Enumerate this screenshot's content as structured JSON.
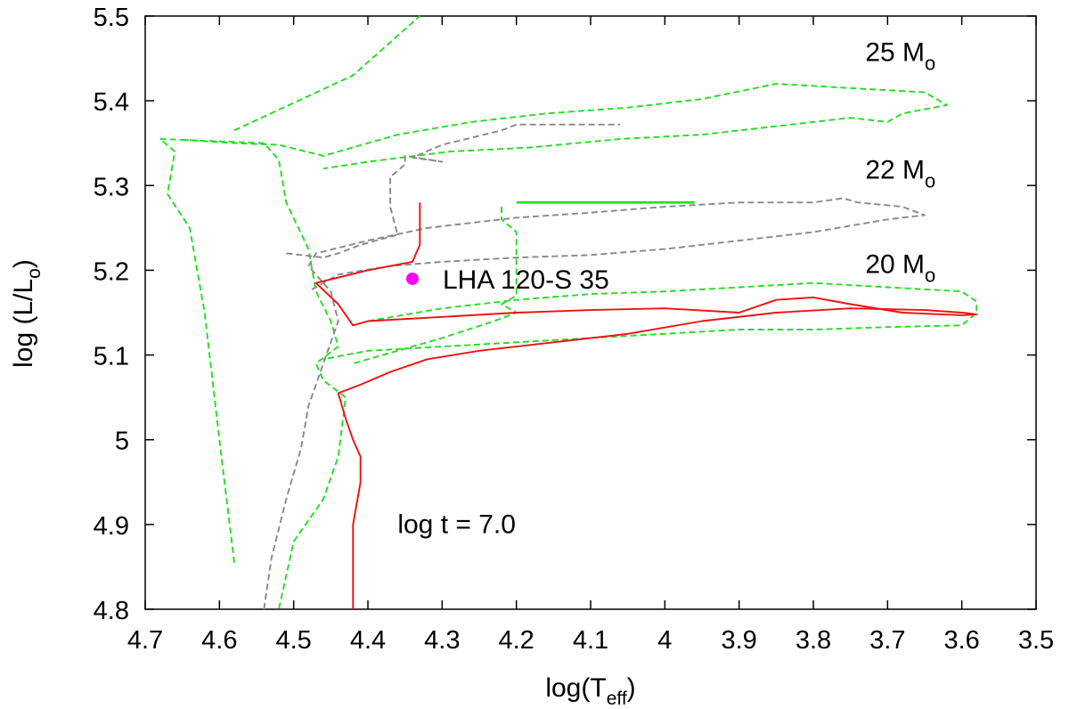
{
  "chart_data": {
    "type": "line",
    "xlabel": {
      "main": "log(T",
      "sub": "eff",
      "close": ")"
    },
    "ylabel": {
      "main": "log (L/L",
      "sub": "o",
      "close": ")"
    },
    "xlim": [
      4.7,
      3.5
    ],
    "ylim": [
      4.8,
      5.5
    ],
    "xticks": [
      4.7,
      4.6,
      4.5,
      4.4,
      4.3,
      4.2,
      4.1,
      4.0,
      3.9,
      3.8,
      3.7,
      3.6,
      3.5
    ],
    "xtick_labels": [
      "4.7",
      "4.6",
      "4.5",
      "4.4",
      "4.3",
      "4.2",
      "4.1",
      "4",
      "3.9",
      "3.8",
      "3.7",
      "3.6",
      "3.5"
    ],
    "yticks": [
      4.8,
      4.9,
      5.0,
      5.1,
      5.2,
      5.3,
      5.4,
      5.5
    ],
    "ytick_labels": [
      "4.8",
      "4.9",
      "5",
      "5.1",
      "5.2",
      "5.3",
      "5.4",
      "5.5"
    ],
    "grid": false,
    "colors": {
      "green": "#22dd22",
      "gray": "#888888",
      "red": "#ee1111",
      "magenta": "#ff00ff"
    },
    "series": [
      {
        "style": "dashed",
        "color": "green",
        "points": [
          [
            4.58,
            4.855
          ],
          [
            4.6,
            5.0
          ],
          [
            4.62,
            5.15
          ],
          [
            4.64,
            5.25
          ],
          [
            4.67,
            5.29
          ],
          [
            4.66,
            5.34
          ],
          [
            4.68,
            5.355
          ],
          [
            4.54,
            5.35
          ],
          [
            4.52,
            5.33
          ],
          [
            4.51,
            5.28
          ],
          [
            4.48,
            5.225
          ],
          [
            4.47,
            5.175
          ],
          [
            4.45,
            5.14
          ],
          [
            4.44,
            5.11
          ],
          [
            4.47,
            5.09
          ],
          [
            4.46,
            5.07
          ],
          [
            4.43,
            5.05
          ],
          [
            4.44,
            4.98
          ],
          [
            4.46,
            4.93
          ],
          [
            4.5,
            4.88
          ],
          [
            4.52,
            4.8
          ]
        ]
      },
      {
        "style": "dashed",
        "color": "green",
        "points": [
          [
            4.58,
            5.365
          ],
          [
            4.42,
            5.43
          ],
          [
            4.33,
            5.5
          ]
        ]
      },
      {
        "style": "dashed",
        "color": "green",
        "points": [
          [
            4.65,
            5.354
          ],
          [
            4.58,
            5.35
          ],
          [
            4.52,
            5.348
          ],
          [
            4.46,
            5.335
          ],
          [
            4.36,
            5.36
          ],
          [
            4.26,
            5.375
          ],
          [
            4.16,
            5.385
          ],
          [
            4.05,
            5.392
          ],
          [
            3.95,
            5.402
          ],
          [
            3.85,
            5.42
          ],
          [
            3.75,
            5.415
          ],
          [
            3.65,
            5.41
          ],
          [
            3.62,
            5.395
          ],
          [
            3.68,
            5.385
          ],
          [
            3.7,
            5.375
          ],
          [
            3.75,
            5.38
          ],
          [
            3.85,
            5.37
          ],
          [
            3.95,
            5.36
          ],
          [
            4.06,
            5.355
          ],
          [
            4.18,
            5.345
          ],
          [
            4.29,
            5.34
          ],
          [
            4.4,
            5.328
          ],
          [
            4.46,
            5.32
          ]
        ]
      },
      {
        "style": "dashed",
        "color": "green",
        "points": [
          [
            4.22,
            5.275
          ],
          [
            4.22,
            5.26
          ],
          [
            4.2,
            5.245
          ],
          [
            4.2,
            5.21
          ],
          [
            4.2,
            5.17
          ],
          [
            4.22,
            5.16
          ],
          [
            4.2,
            5.15
          ],
          [
            4.23,
            5.14
          ],
          [
            4.3,
            5.12
          ],
          [
            4.36,
            5.105
          ],
          [
            4.42,
            5.09
          ]
        ]
      },
      {
        "style": "dashed",
        "color": "green",
        "points": [
          [
            4.4,
            5.14
          ],
          [
            4.3,
            5.155
          ],
          [
            4.2,
            5.165
          ],
          [
            4.1,
            5.172
          ],
          [
            4.0,
            5.175
          ],
          [
            3.9,
            5.18
          ],
          [
            3.8,
            5.185
          ],
          [
            3.7,
            5.18
          ],
          [
            3.6,
            5.175
          ],
          [
            3.58,
            5.163
          ],
          [
            3.58,
            5.15
          ],
          [
            3.6,
            5.135
          ],
          [
            3.7,
            5.133
          ],
          [
            3.8,
            5.13
          ],
          [
            3.9,
            5.13
          ],
          [
            4.0,
            5.125
          ],
          [
            4.1,
            5.12
          ],
          [
            4.2,
            5.115
          ],
          [
            4.3,
            5.11
          ],
          [
            4.4,
            5.105
          ],
          [
            4.46,
            5.095
          ]
        ]
      },
      {
        "style": "solid",
        "color": "green",
        "points": [
          [
            4.2,
            5.28
          ],
          [
            3.96,
            5.28
          ]
        ]
      },
      {
        "style": "dashed",
        "color": "gray",
        "points": [
          [
            4.54,
            4.8
          ],
          [
            4.53,
            4.86
          ],
          [
            4.51,
            4.93
          ],
          [
            4.49,
            4.99
          ],
          [
            4.48,
            5.04
          ],
          [
            4.46,
            5.09
          ],
          [
            4.44,
            5.14
          ],
          [
            4.45,
            5.175
          ],
          [
            4.48,
            5.205
          ],
          [
            4.47,
            5.22
          ],
          [
            4.4,
            5.235
          ],
          [
            4.32,
            5.25
          ],
          [
            4.2,
            5.262
          ],
          [
            4.1,
            5.268
          ],
          [
            4.0,
            5.275
          ],
          [
            3.9,
            5.28
          ],
          [
            3.8,
            5.28
          ],
          [
            3.76,
            5.285
          ],
          [
            3.74,
            5.28
          ],
          [
            3.68,
            5.275
          ],
          [
            3.65,
            5.265
          ],
          [
            3.7,
            5.26
          ],
          [
            3.8,
            5.245
          ],
          [
            3.9,
            5.235
          ],
          [
            4.0,
            5.225
          ],
          [
            4.1,
            5.218
          ],
          [
            4.2,
            5.215
          ],
          [
            4.3,
            5.21
          ],
          [
            4.37,
            5.205
          ],
          [
            4.44,
            5.195
          ],
          [
            4.48,
            5.175
          ]
        ]
      },
      {
        "style": "dashed",
        "color": "gray",
        "points": [
          [
            4.51,
            5.22
          ],
          [
            4.46,
            5.215
          ],
          [
            4.44,
            5.22
          ],
          [
            4.41,
            5.23
          ],
          [
            4.36,
            5.242
          ],
          [
            4.37,
            5.275
          ],
          [
            4.37,
            5.31
          ],
          [
            4.35,
            5.325
          ],
          [
            4.35,
            5.335
          ],
          [
            4.3,
            5.328
          ],
          [
            4.34,
            5.333
          ],
          [
            4.3,
            5.348
          ],
          [
            4.22,
            5.365
          ],
          [
            4.2,
            5.372
          ],
          [
            4.06,
            5.372
          ]
        ]
      },
      {
        "style": "solid",
        "color": "red",
        "points": [
          [
            4.42,
            4.8
          ],
          [
            4.42,
            4.9
          ],
          [
            4.41,
            4.95
          ],
          [
            4.41,
            4.98
          ],
          [
            4.42,
            5.0
          ],
          [
            4.43,
            5.025
          ],
          [
            4.44,
            5.055
          ],
          [
            4.41,
            5.065
          ],
          [
            4.37,
            5.08
          ],
          [
            4.32,
            5.095
          ],
          [
            4.25,
            5.105
          ],
          [
            4.15,
            5.115
          ],
          [
            4.05,
            5.125
          ],
          [
            3.95,
            5.14
          ],
          [
            3.85,
            5.15
          ],
          [
            3.75,
            5.155
          ],
          [
            3.65,
            5.153
          ],
          [
            3.6,
            5.15
          ],
          [
            3.58,
            5.148
          ],
          [
            3.6,
            5.147
          ],
          [
            3.68,
            5.15
          ],
          [
            3.75,
            5.16
          ],
          [
            3.8,
            5.168
          ],
          [
            3.85,
            5.165
          ],
          [
            3.9,
            5.15
          ],
          [
            4.0,
            5.155
          ],
          [
            4.1,
            5.153
          ],
          [
            4.2,
            5.15
          ],
          [
            4.3,
            5.145
          ],
          [
            4.4,
            5.14
          ],
          [
            4.42,
            5.135
          ],
          [
            4.44,
            5.16
          ],
          [
            4.47,
            5.185
          ],
          [
            4.4,
            5.2
          ],
          [
            4.34,
            5.21
          ],
          [
            4.33,
            5.23
          ],
          [
            4.33,
            5.28
          ]
        ]
      }
    ],
    "point": {
      "x": 4.34,
      "y": 5.19,
      "label": "LHA 120-S 35"
    },
    "annotations": [
      {
        "x": 3.73,
        "y": 5.447,
        "main": "25 M",
        "sub": "o"
      },
      {
        "x": 3.73,
        "y": 5.308,
        "main": "22 M",
        "sub": "o"
      },
      {
        "x": 3.73,
        "y": 5.197,
        "main": "20 M",
        "sub": "o"
      },
      {
        "x": 4.36,
        "y": 4.89,
        "main": "log t = 7.0",
        "sub": ""
      }
    ]
  }
}
